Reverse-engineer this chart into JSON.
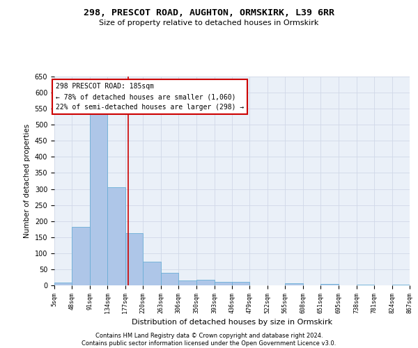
{
  "title": "298, PRESCOT ROAD, AUGHTON, ORMSKIRK, L39 6RR",
  "subtitle": "Size of property relative to detached houses in Ormskirk",
  "xlabel": "Distribution of detached houses by size in Ormskirk",
  "ylabel": "Number of detached properties",
  "footer_line1": "Contains HM Land Registry data © Crown copyright and database right 2024.",
  "footer_line2": "Contains public sector information licensed under the Open Government Licence v3.0.",
  "annotation_title": "298 PRESCOT ROAD: 185sqm",
  "annotation_line1": "← 78% of detached houses are smaller (1,060)",
  "annotation_line2": "22% of semi-detached houses are larger (298) →",
  "bar_edges": [
    5,
    48,
    91,
    134,
    177,
    220,
    263,
    306,
    350,
    393,
    436,
    479,
    522,
    565,
    608,
    651,
    695,
    738,
    781,
    824,
    867
  ],
  "bar_heights": [
    8,
    183,
    534,
    305,
    162,
    73,
    40,
    16,
    18,
    11,
    10,
    0,
    0,
    6,
    0,
    5,
    0,
    3,
    0,
    2
  ],
  "bar_color": "#aec6e8",
  "bar_edge_color": "#6aaed6",
  "marker_x": 185,
  "marker_color": "#cc0000",
  "ylim": [
    0,
    650
  ],
  "xlim": [
    5,
    867
  ],
  "annotation_box_color": "#cc0000",
  "grid_color": "#d0d8e8",
  "bg_color": "#eaf0f8",
  "title_fontsize": 9.5,
  "subtitle_fontsize": 8,
  "ylabel_fontsize": 7.5,
  "xlabel_fontsize": 8,
  "ytick_fontsize": 7,
  "xtick_fontsize": 6,
  "annotation_fontsize": 7,
  "footer_fontsize": 6
}
